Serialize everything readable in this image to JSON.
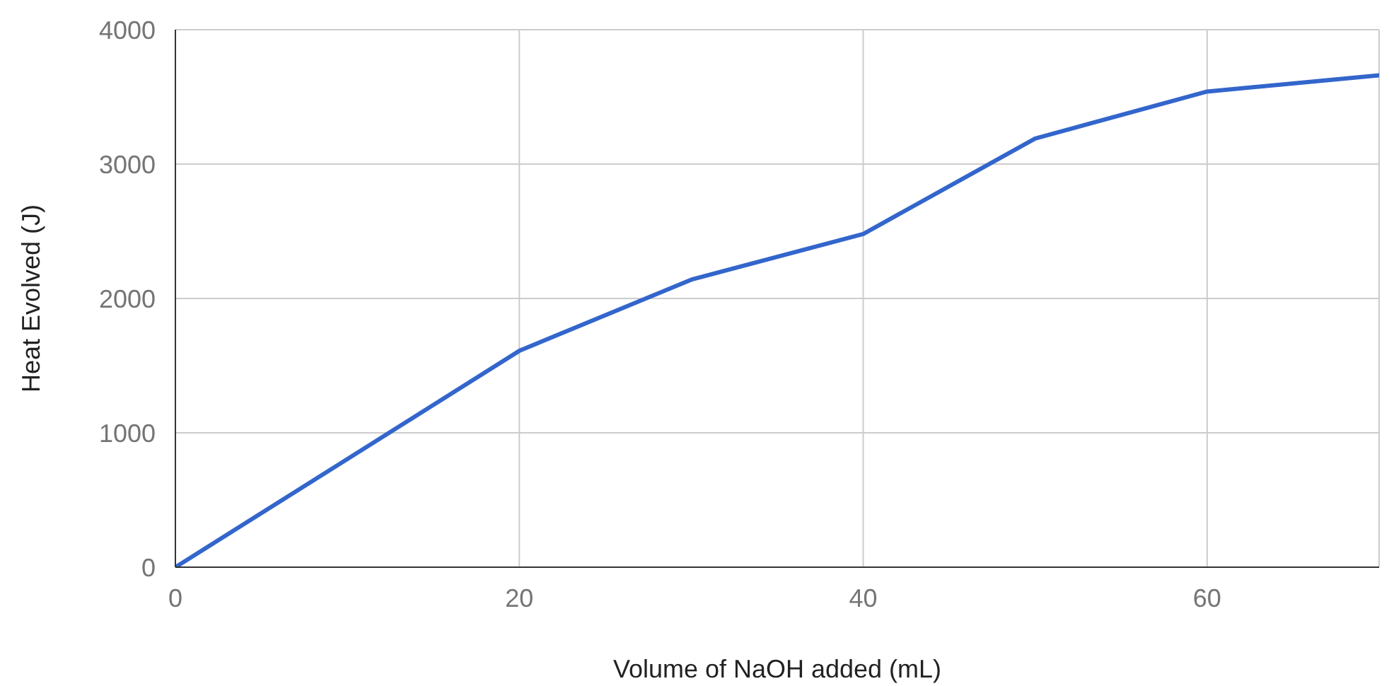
{
  "chart_data": {
    "type": "line",
    "xlabel": "Volume of NaOH added (mL)",
    "ylabel": "Heat Evolved (J)",
    "x": [
      0,
      20,
      30,
      40,
      50,
      60,
      70
    ],
    "series": [
      {
        "color": "#3366cc",
        "values": [
          0,
          1610,
          2140,
          2480,
          3190,
          3540,
          3660
        ]
      }
    ],
    "xlim": [
      0,
      70
    ],
    "xticks": [
      0,
      20,
      40,
      60
    ],
    "ylim": [
      0,
      4000
    ],
    "yticks": [
      0,
      1000,
      2000,
      3000,
      4000
    ],
    "grid": true,
    "marker": "none"
  }
}
